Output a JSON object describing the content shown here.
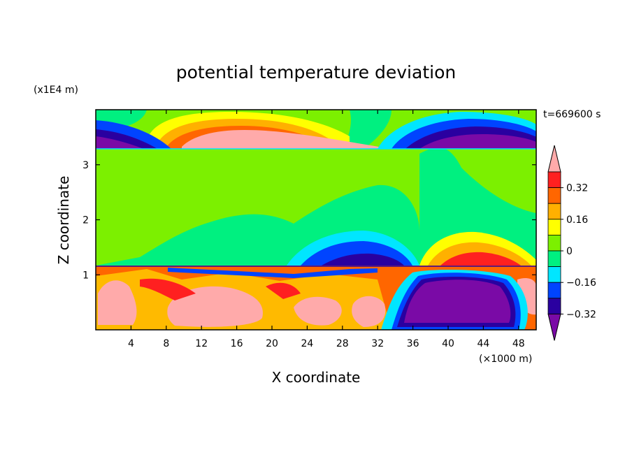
{
  "chart_data": {
    "type": "heatmap",
    "title": "potential temperature deviation",
    "xlabel": "X coordinate",
    "ylabel": "Z coordinate",
    "x_unit": "(×1000 m)",
    "y_unit": "(x1E4 m)",
    "time_label": "t=669600 s",
    "xlim": [
      0,
      50
    ],
    "ylim": [
      0,
      4
    ],
    "x_ticks": [
      4,
      8,
      12,
      16,
      20,
      24,
      28,
      32,
      36,
      40,
      44,
      48
    ],
    "y_ticks": [
      1,
      2,
      3
    ],
    "colorbar": {
      "tick_labels": [
        "0.32",
        "0.16",
        "0",
        "−0.16",
        "−0.32"
      ],
      "colors": [
        "#7a0aa6",
        "#2a00a0",
        "#0044ff",
        "#00e6ff",
        "#00f080",
        "#7cf000",
        "#ffff00",
        "#ffb000",
        "#ff6600",
        "#ff2020",
        "#ffaaaa"
      ]
    },
    "region_colors": {
      "pink": "#ffaaaa",
      "red": "#ff2020",
      "orange": "#ff6600",
      "amber": "#ffb000",
      "yellow": "#ffff00",
      "lime": "#7cf000",
      "green": "#00f080",
      "cyan": "#00e6ff",
      "blue": "#0044ff",
      "navy": "#2a00a0",
      "purple": "#7a0aa6"
    }
  }
}
